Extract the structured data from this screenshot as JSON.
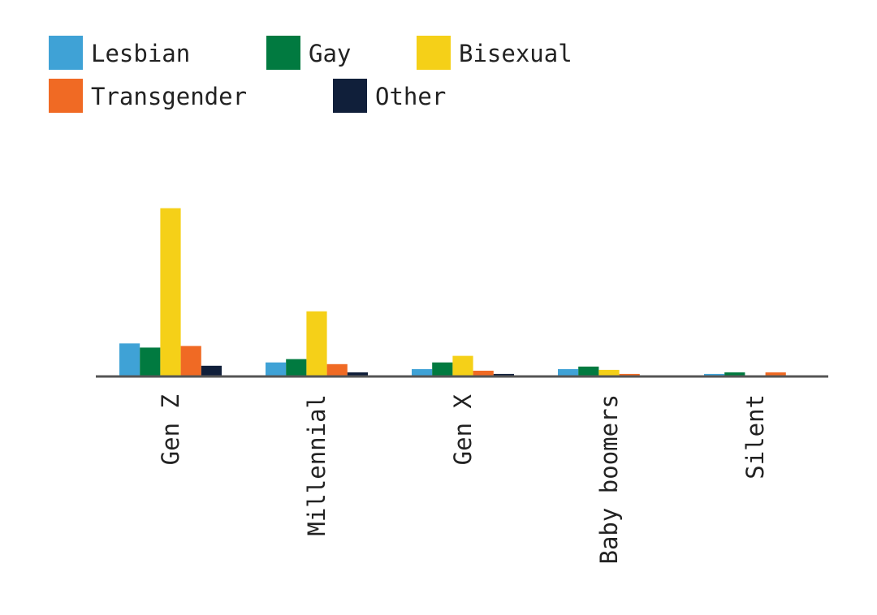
{
  "chart_data": {
    "type": "bar",
    "title": "",
    "xlabel": "",
    "ylabel": "",
    "categories": [
      "Gen Z",
      "Millennial",
      "Gen X",
      "Baby boomers",
      "Silent"
    ],
    "series": [
      {
        "name": "Lesbian",
        "color": "#3fa2d6",
        "values": [
          2.0,
          0.85,
          0.45,
          0.45,
          0.15
        ]
      },
      {
        "name": "Gay",
        "color": "#017a40",
        "values": [
          1.75,
          1.05,
          0.85,
          0.6,
          0.25
        ]
      },
      {
        "name": "Bisexual",
        "color": "#f5d018",
        "values": [
          10.2,
          3.95,
          1.25,
          0.4,
          0.0
        ]
      },
      {
        "name": "Transgender",
        "color": "#f06a24",
        "values": [
          1.85,
          0.75,
          0.35,
          0.15,
          0.25
        ]
      },
      {
        "name": "Other",
        "color": "#101f3a",
        "values": [
          0.65,
          0.25,
          0.15,
          0.0,
          0.0
        ]
      }
    ],
    "ylim": [
      0,
      12
    ],
    "grid": false,
    "legend": "top-left",
    "axis_color": "#555555"
  }
}
